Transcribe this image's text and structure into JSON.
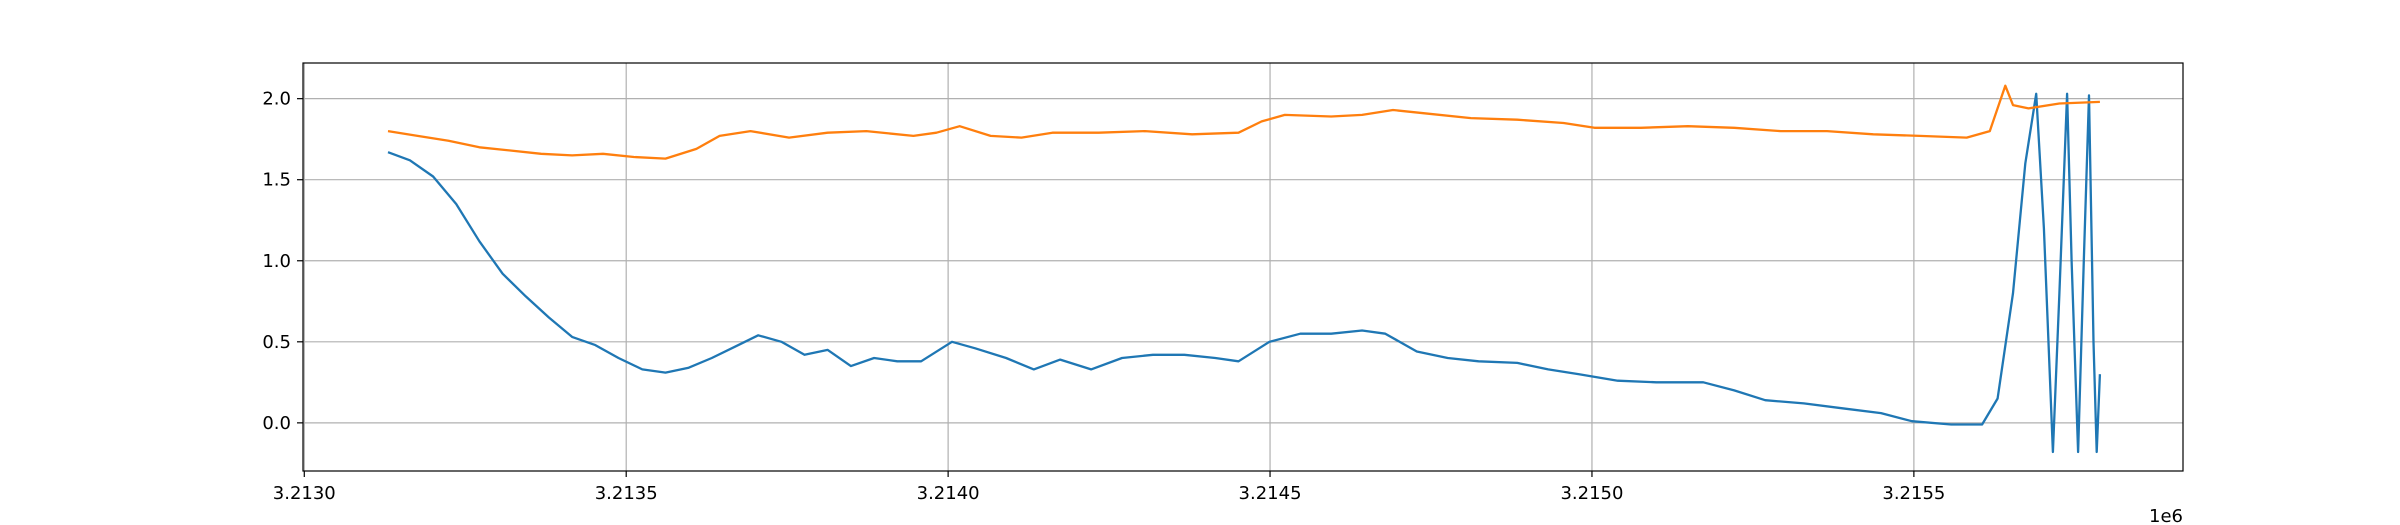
{
  "chart_data": {
    "type": "line",
    "x_offset_label": "1e6",
    "xlim": [
      3212998,
      3215918
    ],
    "ylim": [
      -0.297,
      2.22
    ],
    "xticks": [
      {
        "value": 3213000,
        "label": "3.2130"
      },
      {
        "value": 3213500,
        "label": "3.2135"
      },
      {
        "value": 3214000,
        "label": "3.2140"
      },
      {
        "value": 3214500,
        "label": "3.2145"
      },
      {
        "value": 3215000,
        "label": "3.2150"
      },
      {
        "value": 3215500,
        "label": "3.2155"
      }
    ],
    "yticks": [
      {
        "value": 0,
        "label": "0.0"
      },
      0.5,
      {
        "value": 1,
        "label": "1.0"
      },
      1.5,
      {
        "value": 2,
        "label": "2.0"
      }
    ],
    "grid": true,
    "series": [
      {
        "color": "#1f77b4",
        "x": [
          3213130,
          3213164,
          3213200,
          3213236,
          3213272,
          3213308,
          3213344,
          3213380,
          3213416,
          3213452,
          3213488,
          3213525,
          3213561,
          3213597,
          3213633,
          3213669,
          3213705,
          3213741,
          3213777,
          3213813,
          3213849,
          3213885,
          3213921,
          3213958,
          3214006,
          3214042,
          3214090,
          3214133,
          3214174,
          3214222,
          3214270,
          3214318,
          3214367,
          3214415,
          3214451,
          3214499,
          3214547,
          3214595,
          3214643,
          3214679,
          3214728,
          3214776,
          3214824,
          3214884,
          3214932,
          3214980,
          3215040,
          3215100,
          3215173,
          3215221,
          3215269,
          3215329,
          3215389,
          3215449,
          3215497,
          3215558,
          3215606,
          3215630,
          3215654,
          3215673,
          3215690,
          3215702,
          3215716,
          3215726,
          3215738,
          3215745,
          3215755,
          3215764,
          3215772,
          3215779,
          3215784,
          3215789
        ],
        "values": [
          1.67,
          1.62,
          1.52,
          1.35,
          1.12,
          0.92,
          0.78,
          0.65,
          0.53,
          0.48,
          0.4,
          0.33,
          0.31,
          0.34,
          0.4,
          0.47,
          0.54,
          0.5,
          0.42,
          0.45,
          0.35,
          0.4,
          0.38,
          0.38,
          0.5,
          0.46,
          0.4,
          0.33,
          0.39,
          0.33,
          0.4,
          0.42,
          0.42,
          0.4,
          0.38,
          0.5,
          0.55,
          0.55,
          0.57,
          0.55,
          0.44,
          0.4,
          0.38,
          0.37,
          0.33,
          0.3,
          0.26,
          0.25,
          0.25,
          0.2,
          0.14,
          0.12,
          0.09,
          0.06,
          0.01,
          -0.01,
          -0.01,
          0.15,
          0.8,
          1.6,
          2.03,
          1.2,
          -0.18,
          0.8,
          2.03,
          1.0,
          -0.18,
          1.0,
          2.02,
          0.5,
          -0.18,
          0.3
        ]
      },
      {
        "color": "#ff7f0e",
        "x": [
          3213130,
          3213176,
          3213224,
          3213272,
          3213320,
          3213368,
          3213416,
          3213464,
          3213512,
          3213561,
          3213609,
          3213645,
          3213693,
          3213753,
          3213813,
          3213873,
          3213946,
          3213982,
          3214018,
          3214066,
          3214114,
          3214162,
          3214234,
          3214306,
          3214379,
          3214451,
          3214487,
          3214523,
          3214595,
          3214643,
          3214691,
          3214740,
          3214812,
          3214884,
          3214956,
          3215004,
          3215076,
          3215149,
          3215221,
          3215293,
          3215365,
          3215437,
          3215509,
          3215582,
          3215618,
          3215642,
          3215654,
          3215678,
          3215726,
          3215789
        ],
        "values": [
          1.8,
          1.77,
          1.74,
          1.7,
          1.68,
          1.66,
          1.65,
          1.66,
          1.64,
          1.63,
          1.69,
          1.77,
          1.8,
          1.76,
          1.79,
          1.8,
          1.77,
          1.79,
          1.83,
          1.77,
          1.76,
          1.79,
          1.79,
          1.8,
          1.78,
          1.79,
          1.86,
          1.9,
          1.89,
          1.9,
          1.93,
          1.91,
          1.88,
          1.87,
          1.85,
          1.82,
          1.82,
          1.83,
          1.82,
          1.8,
          1.8,
          1.78,
          1.77,
          1.76,
          1.8,
          2.08,
          1.96,
          1.94,
          1.97,
          1.98
        ]
      }
    ]
  }
}
